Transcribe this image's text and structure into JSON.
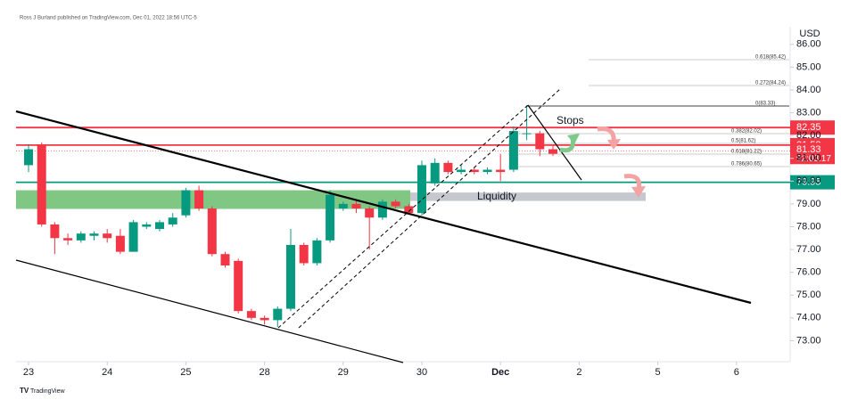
{
  "header": "Ross J Burland published on TradingView.com, Dec 01, 2022 18:56 UTC-5",
  "footer": "TradingView",
  "chart_data": {
    "type": "candlestick",
    "currency": "USD",
    "up_color": "#089981",
    "down_color": "#f23645",
    "ylim": [
      72.0,
      87.4
    ],
    "yticks": [
      {
        "value": 73,
        "label": "73.00"
      },
      {
        "value": 74,
        "label": "74.00"
      },
      {
        "value": 75,
        "label": "75.00"
      },
      {
        "value": 76,
        "label": "76.00"
      },
      {
        "value": 77,
        "label": "77.00"
      },
      {
        "value": 78,
        "label": "78.00"
      },
      {
        "value": 79,
        "label": "79.00"
      },
      {
        "value": 80,
        "label": "80.00"
      },
      {
        "value": 81,
        "label": "81.00"
      },
      {
        "value": 82,
        "label": "82.00"
      },
      {
        "value": 83,
        "label": "83.00"
      },
      {
        "value": 84,
        "label": "84.00"
      },
      {
        "value": 85,
        "label": "85.00"
      },
      {
        "value": 86,
        "label": "86.00"
      }
    ],
    "xticks": [
      {
        "value": 0,
        "label": "23"
      },
      {
        "value": 6,
        "label": "24"
      },
      {
        "value": 12,
        "label": "25"
      },
      {
        "value": 18,
        "label": "28"
      },
      {
        "value": 24,
        "label": "29"
      },
      {
        "value": 30,
        "label": "30"
      },
      {
        "value": 36,
        "label": "Dec"
      },
      {
        "value": 42,
        "label": "2"
      },
      {
        "value": 48,
        "label": "5"
      },
      {
        "value": 54,
        "label": "6"
      }
    ],
    "open": [
      80.7,
      81.6,
      78.1,
      77.5,
      77.4,
      77.6,
      77.7,
      77.6,
      76.9,
      78.0,
      77.9,
      78.1,
      78.5,
      79.6,
      78.8,
      76.8,
      76.5,
      74.3,
      74.0,
      73.9,
      74.4,
      77.2,
      76.4,
      77.4,
      78.8,
      79.0,
      78.8,
      78.4,
      79.1,
      78.9,
      78.6,
      79.9,
      80.8,
      80.4,
      80.5,
      80.4,
      80.5,
      80.5,
      82.1,
      82.1,
      81.4
    ],
    "high": [
      81.6,
      81.7,
      78.2,
      77.7,
      77.8,
      77.8,
      77.9,
      77.9,
      78.3,
      78.2,
      78.3,
      78.6,
      79.7,
      79.8,
      78.9,
      76.9,
      76.6,
      74.4,
      74.1,
      74.5,
      77.9,
      77.3,
      77.5,
      79.6,
      79.1,
      79.2,
      78.9,
      79.2,
      79.2,
      79.0,
      80.9,
      81.0,
      80.9,
      80.7,
      80.6,
      80.6,
      81.2,
      82.4,
      83.3,
      82.2,
      81.6
    ],
    "low": [
      80.4,
      78.0,
      76.8,
      77.2,
      77.3,
      77.4,
      77.3,
      76.8,
      76.9,
      77.9,
      77.8,
      78.0,
      78.4,
      78.7,
      76.7,
      76.2,
      74.2,
      73.9,
      73.7,
      73.6,
      74.3,
      76.3,
      76.3,
      77.3,
      78.7,
      78.6,
      77.0,
      78.3,
      78.8,
      78.6,
      78.5,
      79.8,
      80.3,
      80.3,
      80.3,
      80.3,
      80.0,
      80.4,
      81.8,
      81.1,
      81.1
    ],
    "close": [
      81.4,
      78.1,
      77.5,
      77.4,
      77.7,
      77.7,
      77.5,
      76.9,
      78.2,
      78.1,
      78.2,
      78.4,
      79.6,
      78.8,
      76.8,
      76.3,
      74.3,
      74.0,
      73.9,
      74.4,
      77.2,
      76.4,
      77.4,
      79.4,
      79.0,
      78.8,
      78.4,
      79.1,
      78.9,
      78.6,
      80.7,
      80.8,
      80.4,
      80.5,
      80.4,
      80.5,
      80.4,
      82.2,
      82.1,
      81.4,
      81.2
    ],
    "levels": [
      {
        "value": 82.35,
        "color": "#f23645"
      },
      {
        "value": 81.58,
        "color": "#f23645"
      },
      {
        "value": 81.33,
        "color": "#f23645",
        "countdown": "02:03:17"
      },
      {
        "value": 79.95,
        "color": "#089981"
      }
    ],
    "zones": [
      {
        "range": [
          78.78,
          79.6
        ],
        "color": "#4caf50"
      },
      {
        "range": [
          79.13,
          79.5
        ],
        "color": "#b2b5be",
        "label": "Liquidity"
      }
    ],
    "annotations": [
      "Stops"
    ],
    "fib_labels": [
      "0.618(85.42)",
      "0.272(84.24)",
      "0(83.33)",
      "0.382(82.02)",
      "0.5(81.62)",
      "0.618(81.22)",
      "0.786(80.65)"
    ]
  }
}
